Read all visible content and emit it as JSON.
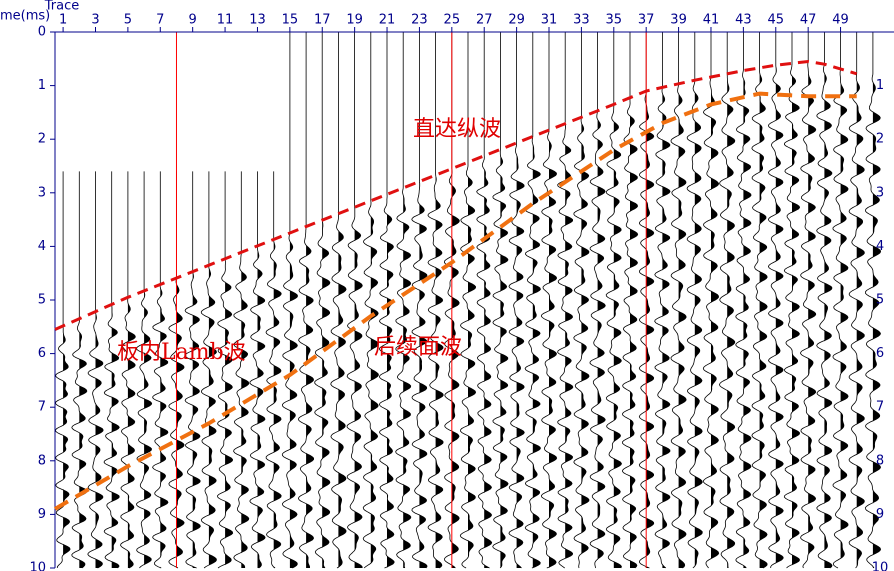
{
  "chart_data": {
    "type": "seismic",
    "x_label": "Trace",
    "y_label": "me(ms)",
    "xlim": [
      0.5,
      52.3
    ],
    "ylim": [
      0,
      10
    ],
    "y_inverted": true,
    "xticks": [
      1,
      3,
      5,
      7,
      9,
      11,
      13,
      15,
      17,
      19,
      21,
      23,
      25,
      27,
      29,
      31,
      33,
      35,
      37,
      39,
      41,
      43,
      45,
      47,
      49
    ],
    "yticks": [
      0,
      1,
      2,
      3,
      4,
      5,
      6,
      7,
      8,
      9,
      10
    ],
    "reference_lines": {
      "color": "#ff0000",
      "x": [
        8,
        25,
        37
      ]
    },
    "annotations": [
      "直达纵波",
      "板内Lamb波",
      "后续面波"
    ],
    "series": [
      {
        "color": "#e01010",
        "x": [
          0.5,
          5,
          10,
          15,
          20,
          25,
          30,
          35,
          37,
          40,
          43,
          45,
          47,
          48,
          50
        ],
        "values": [
          5.55,
          4.95,
          4.35,
          3.75,
          3.15,
          2.55,
          1.95,
          1.35,
          1.1,
          0.9,
          0.72,
          0.62,
          0.55,
          0.6,
          0.78
        ]
      },
      {
        "color": "#f07010",
        "x": [
          0.5,
          5,
          10,
          15,
          20,
          25,
          30,
          35,
          38,
          41,
          44,
          47,
          50
        ],
        "values": [
          8.9,
          8.1,
          7.3,
          6.4,
          5.3,
          4.3,
          3.2,
          2.2,
          1.7,
          1.35,
          1.15,
          1.2,
          1.2
        ]
      }
    ]
  }
}
